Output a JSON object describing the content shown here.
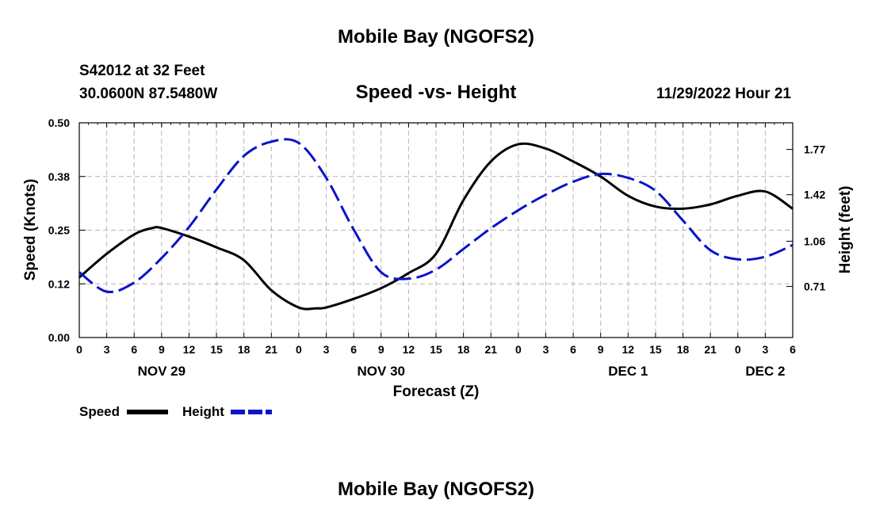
{
  "header": {
    "title": "Mobile Bay (NGOFS2)",
    "station": "S42012 at 32 Feet",
    "location": "30.0600N  87.5480W",
    "subtitle": "Speed -vs- Height",
    "datetime": "11/29/2022 Hour 21"
  },
  "footer": {
    "title": "Mobile Bay (NGOFS2)"
  },
  "chart_data": {
    "type": "line",
    "xlabel": "Forecast (Z)",
    "x_unit": "hours since 11/29/2022 00Z",
    "xlim": [
      0,
      78
    ],
    "x_ticks": [
      0,
      3,
      6,
      9,
      12,
      15,
      18,
      21,
      24,
      27,
      30,
      33,
      36,
      39,
      42,
      45,
      48,
      51,
      54,
      57,
      60,
      63,
      66,
      69,
      72,
      75,
      78
    ],
    "x_tick_labels": [
      "0",
      "3",
      "6",
      "9",
      "12",
      "15",
      "18",
      "21",
      "0",
      "3",
      "6",
      "9",
      "12",
      "15",
      "18",
      "21",
      "0",
      "3",
      "6",
      "9",
      "12",
      "15",
      "18",
      "21",
      "0",
      "3",
      "6"
    ],
    "day_labels": [
      {
        "x": 9,
        "label": "NOV 29"
      },
      {
        "x": 33,
        "label": "NOV 30"
      },
      {
        "x": 60,
        "label": "DEC 1"
      },
      {
        "x": 75,
        "label": "DEC 2"
      }
    ],
    "left_axis": {
      "label": "Speed (Knots)",
      "range": [
        0,
        0.5
      ],
      "ticks": [
        0.0,
        0.125,
        0.25,
        0.375,
        0.5
      ],
      "tick_labels": [
        "0.00",
        "0.12",
        "0.25",
        "0.38",
        "0.50"
      ]
    },
    "right_axis": {
      "label": "Height (feet)",
      "range": [
        0.315,
        1.976
      ],
      "ticks": [
        0.71,
        1.06,
        1.42,
        1.77
      ],
      "tick_labels": [
        "0.71",
        "1.06",
        "1.42",
        "1.77"
      ]
    },
    "grid": true,
    "legend_position": "bottom-left",
    "series": [
      {
        "name": "Speed",
        "axis": "left",
        "color": "#000000",
        "dash": "solid",
        "x": [
          0,
          3,
          6,
          8,
          9,
          12,
          15,
          18,
          21,
          24,
          26,
          27,
          30,
          33,
          36,
          39,
          42,
          45,
          48,
          51,
          54,
          57,
          60,
          63,
          66,
          69,
          72,
          75,
          78
        ],
        "values": [
          0.14,
          0.195,
          0.24,
          0.255,
          0.255,
          0.235,
          0.21,
          0.18,
          0.11,
          0.07,
          0.068,
          0.07,
          0.09,
          0.115,
          0.15,
          0.195,
          0.32,
          0.41,
          0.45,
          0.44,
          0.41,
          0.375,
          0.33,
          0.305,
          0.3,
          0.31,
          0.33,
          0.34,
          0.3
        ]
      },
      {
        "name": "Height",
        "axis": "right",
        "color": "#0a14c8",
        "dash": "dashed",
        "x": [
          0,
          3,
          6,
          9,
          12,
          15,
          18,
          21,
          24,
          27,
          30,
          33,
          36,
          39,
          42,
          45,
          48,
          51,
          54,
          57,
          60,
          63,
          66,
          69,
          72,
          75,
          78
        ],
        "values": [
          0.82,
          0.67,
          0.74,
          0.93,
          1.17,
          1.46,
          1.72,
          1.83,
          1.82,
          1.55,
          1.15,
          0.82,
          0.77,
          0.84,
          1.0,
          1.16,
          1.3,
          1.42,
          1.52,
          1.58,
          1.55,
          1.45,
          1.22,
          0.99,
          0.92,
          0.94,
          1.03
        ]
      }
    ]
  }
}
